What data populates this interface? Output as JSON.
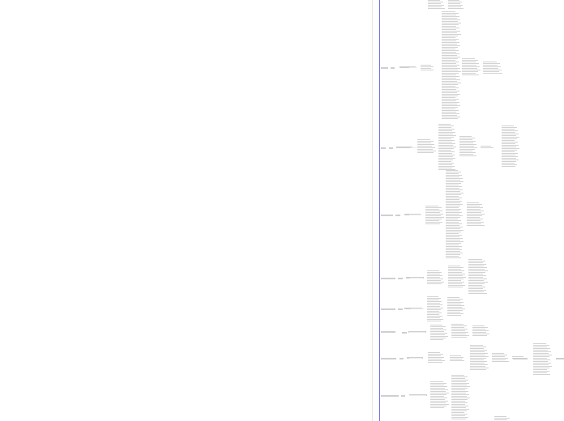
{
  "document": {
    "nodes": [],
    "note": ""
  },
  "colors": {
    "background": "#ffffff",
    "accent": "#6d6ee8",
    "text": "#9b9b9b",
    "divider": "#e6e6e6"
  }
}
